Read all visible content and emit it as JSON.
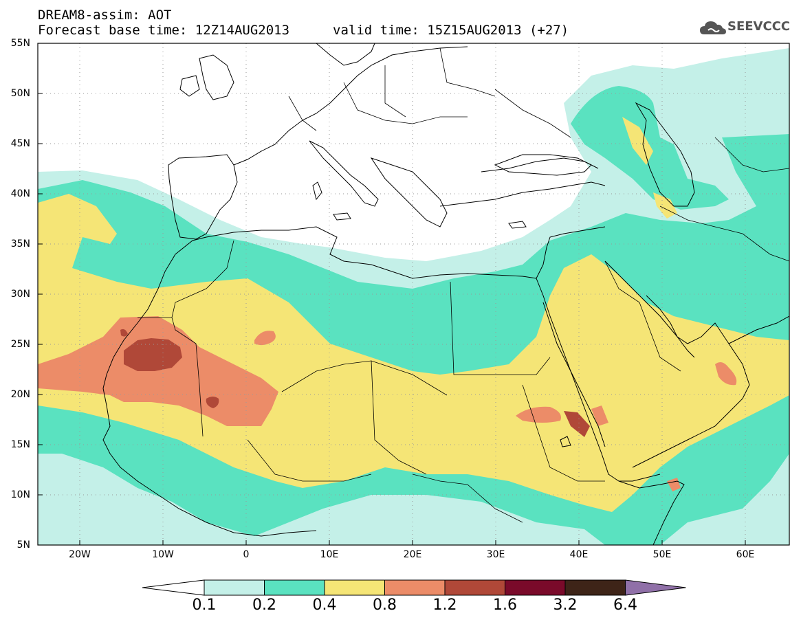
{
  "title": {
    "line1": "DREAM8-assim: AOT",
    "base": "Forecast base time: 12Z14AUG2013",
    "valid": "valid time: 15Z15AUG2013 (+27)"
  },
  "logo": {
    "text": "SEEVCCC",
    "icon": "cloud-icon"
  },
  "map": {
    "lon_range": [
      -25,
      65
    ],
    "lat_range": [
      5,
      55
    ],
    "x_ticks": [
      "20W",
      "10W",
      "0",
      "10E",
      "20E",
      "30E",
      "40E",
      "50E",
      "60E"
    ],
    "y_ticks": [
      "5N",
      "10N",
      "15N",
      "20N",
      "25N",
      "30N",
      "35N",
      "40N",
      "45N",
      "50N",
      "55N"
    ],
    "grid": "dotted"
  },
  "colorbar": {
    "labels": [
      "0.1",
      "0.2",
      "0.4",
      "0.8",
      "1.2",
      "1.6",
      "3.2",
      "6.4"
    ],
    "colors": [
      "#ffffff",
      "#c4f0e8",
      "#5ae2c0",
      "#f5e576",
      "#ec8c68",
      "#b04838",
      "#7a0a2a",
      "#3e2418",
      "#9070a8"
    ]
  }
}
